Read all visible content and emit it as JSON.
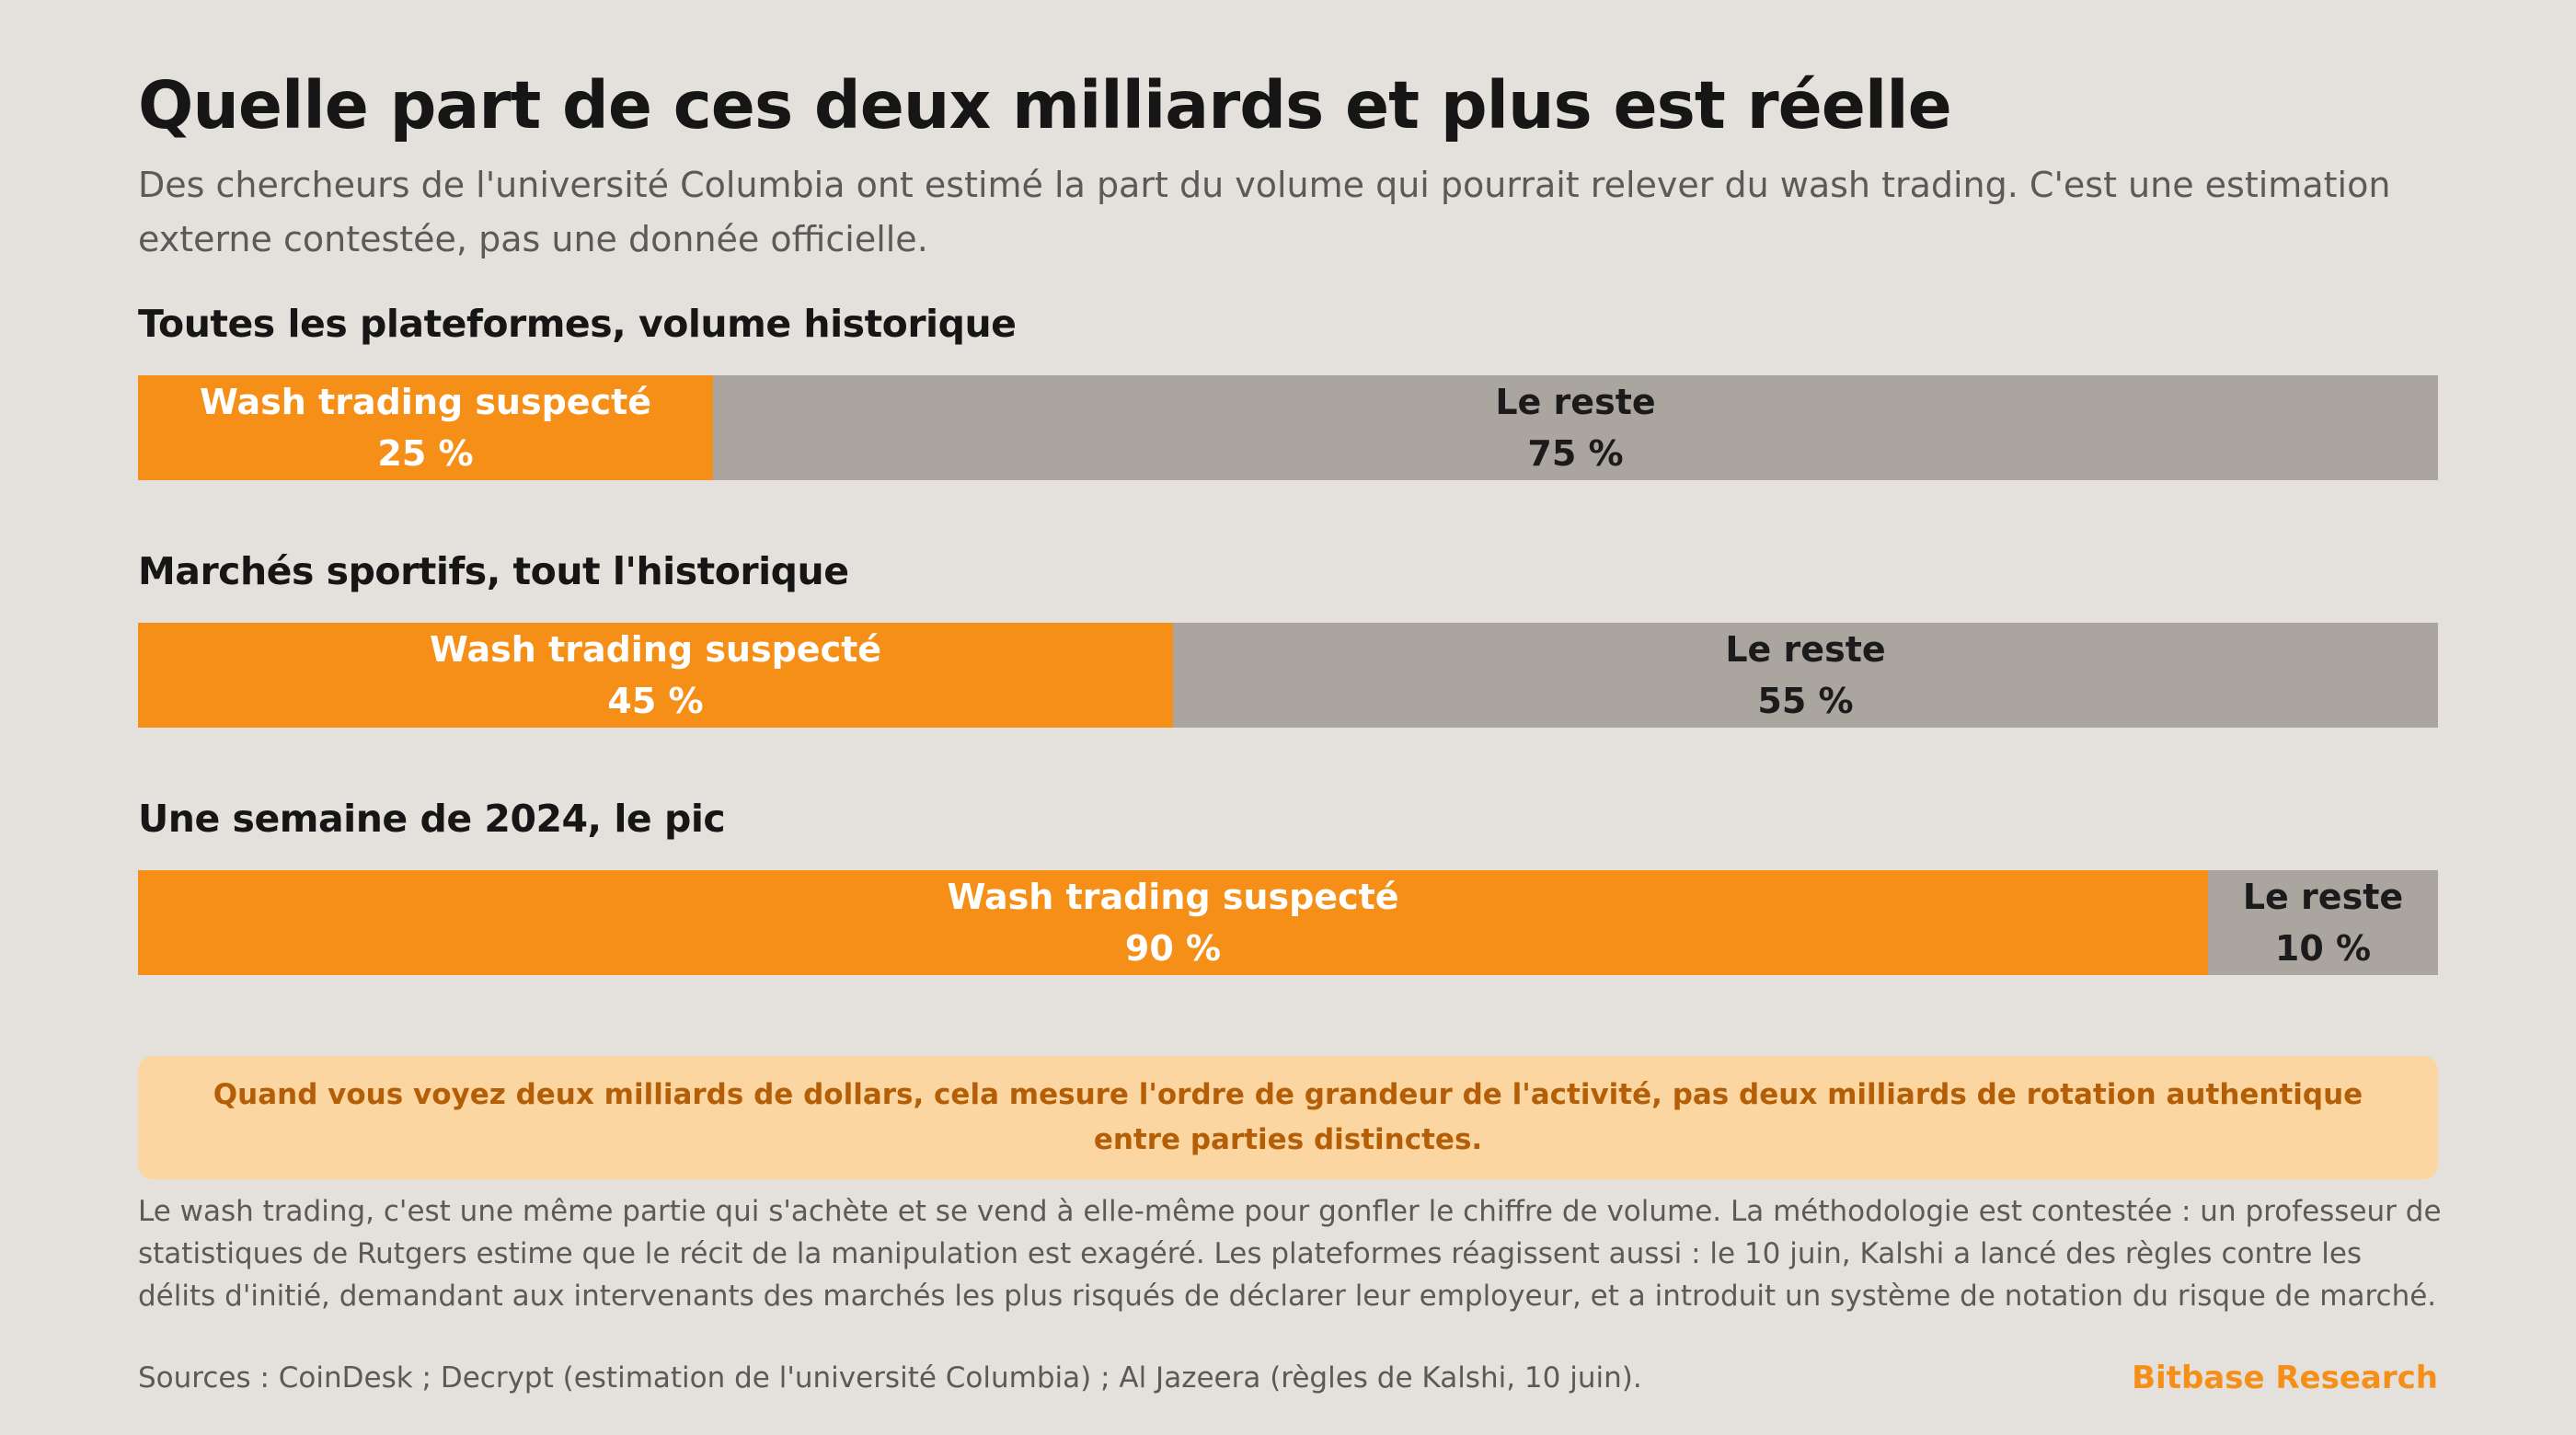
{
  "header": {
    "title": "Quelle part de ces deux milliards et plus est réelle",
    "subtitle": "Des chercheurs de l'université Columbia ont estimé la part du volume qui pourrait relever du wash trading. C'est une estimation externe contestée, pas une donnée officielle."
  },
  "colors": {
    "wash": "#f58f18",
    "rest": "#aaa59f",
    "background": "#e4e0db",
    "callout_bg": "#fbd6a0",
    "callout_text": "#b45f08",
    "brand": "#f58f18"
  },
  "chart_data": {
    "type": "bar",
    "orientation": "horizontal-stacked-100",
    "unit": "%",
    "series_labels": {
      "wash": "Wash trading suspecté",
      "rest": "Le reste"
    },
    "charts": [
      {
        "title": "Toutes les plateformes, volume historique",
        "wash": 25,
        "rest": 75,
        "wash_text": "25 %",
        "rest_text": "75 %"
      },
      {
        "title": "Marchés sportifs, tout l'historique",
        "wash": 45,
        "rest": 55,
        "wash_text": "45 %",
        "rest_text": "55 %"
      },
      {
        "title": "Une semaine de 2024, le pic",
        "wash": 90,
        "rest": 10,
        "wash_text": "90 %",
        "rest_text": "10 %"
      }
    ]
  },
  "callout": {
    "text": "Quand vous voyez deux milliards de dollars, cela mesure l'ordre de grandeur de l'activité, pas deux milliards de rotation authentique entre parties distinctes."
  },
  "body": {
    "text": "Le wash trading, c'est une même partie qui s'achète et se vend à elle-même pour gonfler le chiffre de volume. La méthodologie est contestée : un professeur de statistiques de Rutgers estime que le récit de la manipulation est exagéré. Les plateformes réagissent aussi : le 10 juin, Kalshi a lancé des règles contre les délits d'initié, demandant aux intervenants des marchés les plus risqués de déclarer leur employeur, et a introduit un système de notation du risque de marché."
  },
  "footer": {
    "sources": "Sources : CoinDesk ; Decrypt (estimation de l'université Columbia) ; Al Jazeera (règles de Kalshi, 10 juin).",
    "brand": "Bitbase Research"
  }
}
